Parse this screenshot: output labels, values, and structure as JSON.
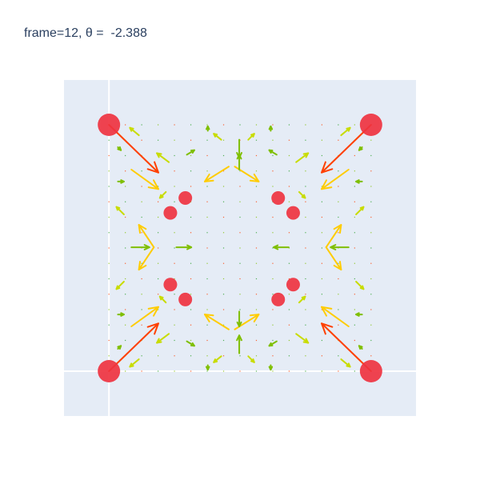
{
  "chart_data": {
    "type": "scatter",
    "title": "frame=12, θ =  -2.388",
    "xlabel": "",
    "ylabel": "",
    "xlim": [
      -0.3,
      2.05
    ],
    "ylim": [
      -0.3,
      1.95
    ],
    "grid": true,
    "zero_lines": true,
    "plot_bg": "#e5ecf6",
    "gridline_color": "#ffffff",
    "marker_color": "#ef3340",
    "arrow_colors": [
      "#2ca02c",
      "#7fbf00",
      "#c8dc00",
      "#ffcc00",
      "#ff4000"
    ],
    "markers": [
      {
        "x": 0.0,
        "y": 0.0,
        "size": "large"
      },
      {
        "x": 1.75,
        "y": 0.0,
        "size": "large"
      },
      {
        "x": 0.0,
        "y": 1.65,
        "size": "large"
      },
      {
        "x": 1.75,
        "y": 1.65,
        "size": "large"
      },
      {
        "x": 0.51,
        "y": 0.48,
        "size": "small"
      },
      {
        "x": 1.13,
        "y": 0.48,
        "size": "small"
      },
      {
        "x": 0.51,
        "y": 1.16,
        "size": "small"
      },
      {
        "x": 1.13,
        "y": 1.16,
        "size": "small"
      },
      {
        "x": 0.41,
        "y": 0.58,
        "size": "small"
      },
      {
        "x": 1.23,
        "y": 0.58,
        "size": "small"
      },
      {
        "x": 0.41,
        "y": 1.06,
        "size": "small"
      },
      {
        "x": 1.23,
        "y": 1.06,
        "size": "small"
      }
    ],
    "arrows": [
      {
        "x": 0.0,
        "y": 1.65,
        "u": 0.33,
        "v": -0.32,
        "mag": 1.0
      },
      {
        "x": 1.75,
        "y": 1.65,
        "u": -0.33,
        "v": -0.32,
        "mag": 1.0
      },
      {
        "x": 0.0,
        "y": 0.0,
        "u": 0.33,
        "v": 0.32,
        "mag": 1.0
      },
      {
        "x": 1.75,
        "y": 0.0,
        "u": -0.33,
        "v": 0.32,
        "mag": 1.0
      },
      {
        "x": 0.15,
        "y": 0.3,
        "u": 0.18,
        "v": 0.13,
        "mag": 0.85
      },
      {
        "x": 1.6,
        "y": 0.3,
        "u": -0.18,
        "v": 0.13,
        "mag": 0.85
      },
      {
        "x": 0.15,
        "y": 1.35,
        "u": 0.18,
        "v": -0.13,
        "mag": 0.85
      },
      {
        "x": 1.6,
        "y": 1.35,
        "u": -0.18,
        "v": -0.13,
        "mag": 0.85
      },
      {
        "x": 0.8,
        "y": 1.37,
        "u": -0.16,
        "v": -0.1,
        "mag": 0.65
      },
      {
        "x": 0.84,
        "y": 1.37,
        "u": 0.16,
        "v": -0.1,
        "mag": 0.65
      },
      {
        "x": 0.8,
        "y": 0.28,
        "u": -0.16,
        "v": 0.1,
        "mag": 0.65
      },
      {
        "x": 0.84,
        "y": 0.28,
        "u": 0.16,
        "v": 0.1,
        "mag": 0.65
      },
      {
        "x": 0.3,
        "y": 0.83,
        "u": -0.1,
        "v": -0.15,
        "mag": 0.65
      },
      {
        "x": 0.3,
        "y": 0.83,
        "u": -0.1,
        "v": 0.15,
        "mag": 0.65
      },
      {
        "x": 1.45,
        "y": 0.83,
        "u": 0.1,
        "v": -0.15,
        "mag": 0.65
      },
      {
        "x": 1.45,
        "y": 0.83,
        "u": 0.1,
        "v": 0.15,
        "mag": 0.65
      },
      {
        "x": 0.15,
        "y": 0.83,
        "u": 0.12,
        "v": 0.0,
        "mag": 0.35
      },
      {
        "x": 1.6,
        "y": 0.83,
        "u": -0.12,
        "v": 0.0,
        "mag": 0.35
      },
      {
        "x": 0.45,
        "y": 0.83,
        "u": 0.1,
        "v": 0.0,
        "mag": 0.35
      },
      {
        "x": 1.2,
        "y": 0.83,
        "u": -0.1,
        "v": 0.0,
        "mag": 0.35
      },
      {
        "x": 0.87,
        "y": 1.35,
        "u": 0.0,
        "v": 0.1,
        "mag": 0.35
      },
      {
        "x": 0.87,
        "y": 1.55,
        "u": 0.0,
        "v": -0.12,
        "mag": 0.35
      },
      {
        "x": 0.87,
        "y": 0.4,
        "u": 0.0,
        "v": -0.1,
        "mag": 0.35
      },
      {
        "x": 0.87,
        "y": 0.12,
        "u": 0.0,
        "v": 0.12,
        "mag": 0.35
      },
      {
        "x": 0.4,
        "y": 1.4,
        "u": -0.08,
        "v": 0.06,
        "mag": 0.45
      },
      {
        "x": 1.25,
        "y": 1.4,
        "u": 0.08,
        "v": 0.06,
        "mag": 0.45
      },
      {
        "x": 0.4,
        "y": 0.25,
        "u": -0.08,
        "v": -0.06,
        "mag": 0.45
      },
      {
        "x": 1.25,
        "y": 0.25,
        "u": 0.08,
        "v": -0.06,
        "mag": 0.45
      },
      {
        "x": 0.75,
        "y": 1.55,
        "u": -0.05,
        "v": 0.04,
        "mag": 0.45
      },
      {
        "x": 0.93,
        "y": 1.55,
        "u": 0.04,
        "v": 0.04,
        "mag": 0.45
      },
      {
        "x": 0.75,
        "y": 0.1,
        "u": -0.05,
        "v": -0.04,
        "mag": 0.45
      },
      {
        "x": 0.93,
        "y": 0.1,
        "u": 0.04,
        "v": -0.04,
        "mag": 0.45
      },
      {
        "x": 0.1,
        "y": 1.05,
        "u": -0.05,
        "v": 0.05,
        "mag": 0.45
      },
      {
        "x": 1.65,
        "y": 1.05,
        "u": 0.05,
        "v": 0.05,
        "mag": 0.45
      },
      {
        "x": 0.1,
        "y": 0.6,
        "u": -0.05,
        "v": -0.05,
        "mag": 0.45
      },
      {
        "x": 1.65,
        "y": 0.6,
        "u": 0.05,
        "v": -0.05,
        "mag": 0.45
      },
      {
        "x": 0.38,
        "y": 1.2,
        "u": -0.04,
        "v": -0.04,
        "mag": 0.4
      },
      {
        "x": 1.27,
        "y": 1.2,
        "u": 0.04,
        "v": -0.04,
        "mag": 0.4
      },
      {
        "x": 0.38,
        "y": 0.46,
        "u": -0.04,
        "v": 0.04,
        "mag": 0.4
      },
      {
        "x": 1.27,
        "y": 0.46,
        "u": 0.04,
        "v": 0.04,
        "mag": 0.4
      },
      {
        "x": 0.2,
        "y": 1.58,
        "u": -0.06,
        "v": 0.05,
        "mag": 0.4
      },
      {
        "x": 1.55,
        "y": 1.58,
        "u": 0.06,
        "v": 0.05,
        "mag": 0.4
      },
      {
        "x": 0.2,
        "y": 0.08,
        "u": -0.06,
        "v": -0.05,
        "mag": 0.4
      },
      {
        "x": 1.55,
        "y": 0.08,
        "u": 0.06,
        "v": -0.05,
        "mag": 0.4
      },
      {
        "x": 0.52,
        "y": 0.2,
        "u": 0.05,
        "v": -0.03,
        "mag": 0.3
      },
      {
        "x": 1.12,
        "y": 0.2,
        "u": -0.05,
        "v": -0.03,
        "mag": 0.3
      },
      {
        "x": 0.52,
        "y": 1.45,
        "u": 0.05,
        "v": 0.03,
        "mag": 0.3
      },
      {
        "x": 1.12,
        "y": 1.45,
        "u": -0.05,
        "v": 0.03,
        "mag": 0.3
      },
      {
        "x": 0.06,
        "y": 0.38,
        "u": 0.04,
        "v": 0.0,
        "mag": 0.2
      },
      {
        "x": 1.69,
        "y": 0.38,
        "u": -0.04,
        "v": 0.0,
        "mag": 0.2
      },
      {
        "x": 0.06,
        "y": 1.27,
        "u": 0.04,
        "v": 0.0,
        "mag": 0.2
      },
      {
        "x": 1.69,
        "y": 1.27,
        "u": -0.04,
        "v": 0.0,
        "mag": 0.2
      },
      {
        "x": 0.66,
        "y": 1.61,
        "u": 0.0,
        "v": 0.03,
        "mag": 0.2
      },
      {
        "x": 1.08,
        "y": 1.61,
        "u": 0.0,
        "v": 0.03,
        "mag": 0.2
      },
      {
        "x": 0.66,
        "y": 0.04,
        "u": 0.0,
        "v": -0.03,
        "mag": 0.2
      },
      {
        "x": 1.08,
        "y": 0.04,
        "u": 0.0,
        "v": -0.03,
        "mag": 0.2
      },
      {
        "x": 0.06,
        "y": 1.5,
        "u": 0.02,
        "v": -0.02,
        "mag": 0.15
      },
      {
        "x": 1.69,
        "y": 1.5,
        "u": -0.02,
        "v": -0.02,
        "mag": 0.15
      },
      {
        "x": 0.06,
        "y": 0.15,
        "u": 0.02,
        "v": 0.02,
        "mag": 0.15
      },
      {
        "x": 1.69,
        "y": 0.15,
        "u": -0.02,
        "v": 0.02,
        "mag": 0.15
      }
    ]
  }
}
